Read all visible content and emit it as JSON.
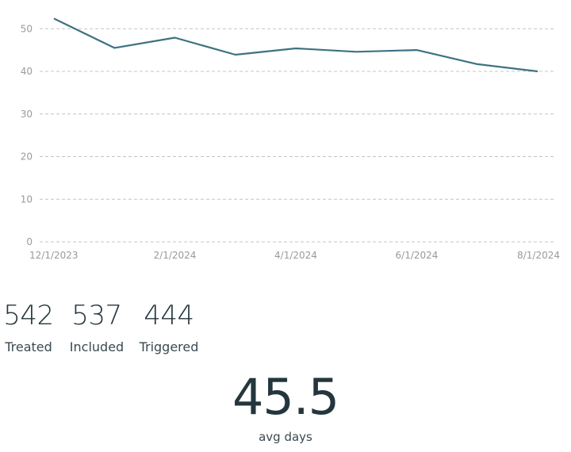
{
  "chart_data": {
    "type": "line",
    "title": "",
    "xlabel": "",
    "ylabel": "",
    "x": [
      "12/1/2023",
      "1/1/2024",
      "2/1/2024",
      "3/1/2024",
      "4/1/2024",
      "5/1/2024",
      "6/1/2024",
      "7/1/2024",
      "8/1/2024"
    ],
    "series": [
      {
        "name": "avg days",
        "values": [
          52.4,
          45.5,
          47.9,
          43.9,
          45.4,
          44.6,
          45.0,
          41.7,
          40.0
        ],
        "color": "#3d7282"
      }
    ],
    "x_tick_labels": [
      "12/1/2023",
      "2/1/2024",
      "4/1/2024",
      "6/1/2024",
      "8/1/2024"
    ],
    "y_ticks": [
      0,
      10,
      20,
      30,
      40,
      50
    ],
    "ylim": [
      0,
      55
    ],
    "grid": "horizontal dashed",
    "legend": "none"
  },
  "stats": [
    {
      "value": "542",
      "label": "Treated"
    },
    {
      "value": "537",
      "label": "Included"
    },
    {
      "value": "444",
      "label": "Triggered"
    }
  ],
  "summary": {
    "value": "45.5",
    "label": "avg days"
  },
  "colors": {
    "line": "#3d7282",
    "text": "#24363d",
    "grid": "#c4c4c4"
  }
}
